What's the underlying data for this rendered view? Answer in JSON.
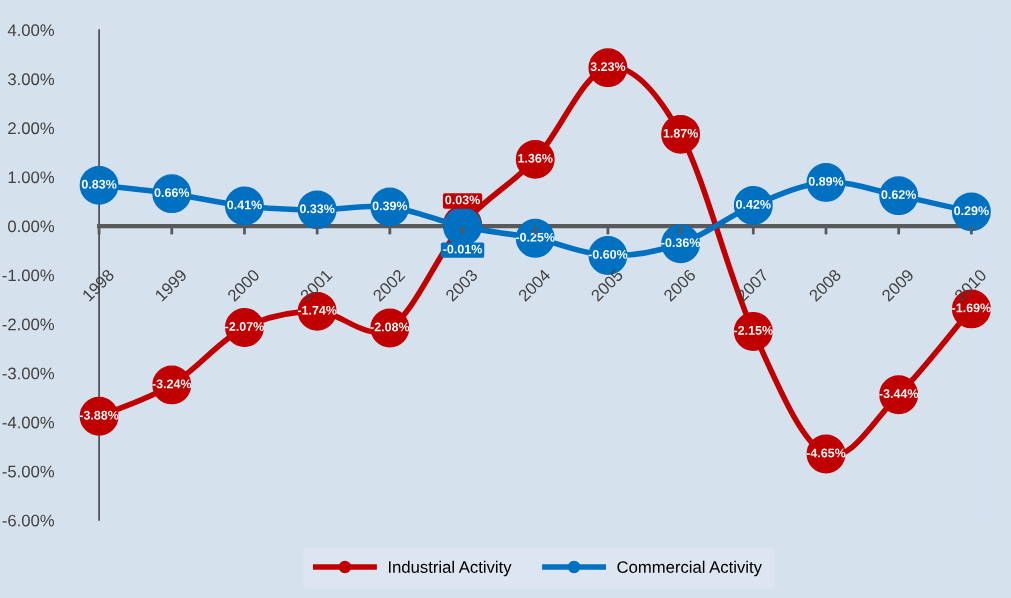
{
  "chart_data": {
    "type": "line",
    "categories": [
      "1998",
      "1999",
      "2000",
      "2001",
      "2002",
      "2003",
      "2004",
      "2005",
      "2006",
      "2007",
      "2008",
      "2009",
      "2010"
    ],
    "series": [
      {
        "name": "Industrial Activity",
        "color": "#c00000",
        "values": [
          -3.88,
          -3.24,
          -2.07,
          -1.74,
          -2.08,
          0.03,
          1.36,
          3.23,
          1.87,
          -2.15,
          -4.65,
          -3.44,
          -1.69
        ],
        "value_labels": [
          "-3.88%",
          "-3.24%",
          "-2.07%",
          "-1.74%",
          "-2.08%",
          "0.03%",
          "1.36%",
          "3.23%",
          "1.87%",
          "-2.15%",
          "-4.65%",
          "-3.44%",
          "-1.69%"
        ]
      },
      {
        "name": "Commercial Activity",
        "color": "#0070c0",
        "values": [
          0.83,
          0.66,
          0.41,
          0.33,
          0.39,
          -0.01,
          -0.25,
          -0.6,
          -0.36,
          0.42,
          0.89,
          0.62,
          0.29
        ],
        "value_labels": [
          "0.83%",
          "0.66%",
          "0.41%",
          "0.33%",
          "0.39%",
          "-0.01%",
          "-0.25%",
          "-0.60%",
          "-0.36%",
          "0.42%",
          "0.89%",
          "0.62%",
          "0.29%"
        ]
      }
    ],
    "ylim": [
      -6,
      4
    ],
    "yticks": [
      {
        "value": -6,
        "label": "-6.00%"
      },
      {
        "value": -5,
        "label": "-5.00%"
      },
      {
        "value": -4,
        "label": "-4.00%"
      },
      {
        "value": -3,
        "label": "-3.00%"
      },
      {
        "value": -2,
        "label": "-2.00%"
      },
      {
        "value": -1,
        "label": "-1.00%"
      },
      {
        "value": 0,
        "label": "0.00%"
      },
      {
        "value": 1,
        "label": "1.00%"
      },
      {
        "value": 2,
        "label": "2.00%"
      },
      {
        "value": 3,
        "label": "3.00%"
      },
      {
        "value": 4,
        "label": "4.00%"
      }
    ],
    "marker": "circle",
    "line_style": "solid",
    "legend": "bottom",
    "grid": false
  }
}
